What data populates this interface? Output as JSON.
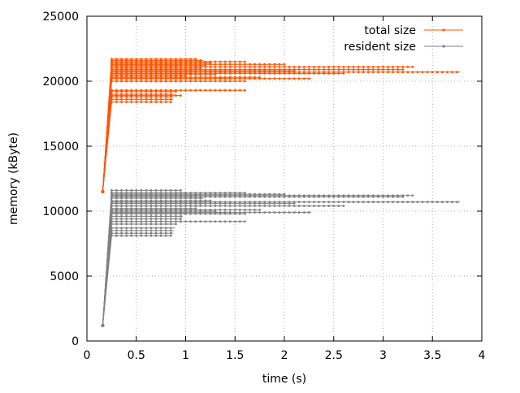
{
  "chart_data": {
    "type": "line",
    "xlabel": "time (s)",
    "ylabel": "memory  (kByte)",
    "xlim": [
      0,
      4
    ],
    "ylim": [
      0,
      25000
    ],
    "xticks": [
      0,
      0.5,
      1,
      1.5,
      2,
      2.5,
      3,
      3.5,
      4
    ],
    "xtick_labels": [
      "0",
      "0.5",
      "1",
      "1.5",
      "2",
      "2.5",
      "3",
      "3.5",
      "4"
    ],
    "yticks": [
      0,
      5000,
      10000,
      15000,
      20000,
      25000
    ],
    "ytick_labels": [
      "0",
      "5000",
      "10000",
      "15000",
      "20000",
      "25000"
    ],
    "grid": true,
    "legend_position": "top-right",
    "start_point": {
      "x": 0.16,
      "total": 11500,
      "resident": 1200
    },
    "ramp_x": 0.25,
    "series": [
      {
        "name": "total size",
        "color": "#ff5500",
        "key": "total"
      },
      {
        "name": "resident size",
        "color": "#808080",
        "key": "resident"
      }
    ],
    "runs": [
      {
        "end": 0.86,
        "total": 18400,
        "resident": 8100
      },
      {
        "end": 0.87,
        "total": 18600,
        "resident": 8300
      },
      {
        "end": 0.88,
        "total": 18800,
        "resident": 8500
      },
      {
        "end": 0.89,
        "total": 19000,
        "resident": 8700
      },
      {
        "end": 0.9,
        "total": 19200,
        "resident": 9000
      },
      {
        "end": 0.96,
        "total": 18900,
        "resident": 9200
      },
      {
        "end": 0.95,
        "total": 20000,
        "resident": 9400
      },
      {
        "end": 0.97,
        "total": 20200,
        "resident": 9600
      },
      {
        "end": 1.0,
        "total": 20400,
        "resident": 9800
      },
      {
        "end": 1.05,
        "total": 20600,
        "resident": 10000
      },
      {
        "end": 1.1,
        "total": 20800,
        "resident": 10200
      },
      {
        "end": 1.15,
        "total": 21000,
        "resident": 10400
      },
      {
        "end": 1.2,
        "total": 21200,
        "resident": 10600
      },
      {
        "end": 1.25,
        "total": 21400,
        "resident": 10800
      },
      {
        "end": 1.18,
        "total": 21600,
        "resident": 11000
      },
      {
        "end": 1.12,
        "total": 21700,
        "resident": 11200
      },
      {
        "end": 1.0,
        "total": 21500,
        "resident": 11400
      },
      {
        "end": 0.95,
        "total": 21300,
        "resident": 11600
      },
      {
        "end": 1.3,
        "total": 20500,
        "resident": 10000
      },
      {
        "end": 1.45,
        "total": 20200,
        "resident": 9900
      },
      {
        "end": 1.6,
        "total": 21500,
        "resident": 11400
      },
      {
        "end": 1.6,
        "total": 20000,
        "resident": 9800
      },
      {
        "end": 1.6,
        "total": 19300,
        "resident": 9200
      },
      {
        "end": 1.75,
        "total": 20300,
        "resident": 10100
      },
      {
        "end": 2.0,
        "total": 21300,
        "resident": 11300
      },
      {
        "end": 2.1,
        "total": 20800,
        "resident": 10600
      },
      {
        "end": 2.27,
        "total": 20200,
        "resident": 9900
      },
      {
        "end": 2.6,
        "total": 20600,
        "resident": 10400
      },
      {
        "end": 3.2,
        "total": 20900,
        "resident": 11100
      },
      {
        "end": 3.3,
        "total": 21100,
        "resident": 11200
      },
      {
        "end": 3.78,
        "total": 20700,
        "resident": 10700
      }
    ]
  }
}
